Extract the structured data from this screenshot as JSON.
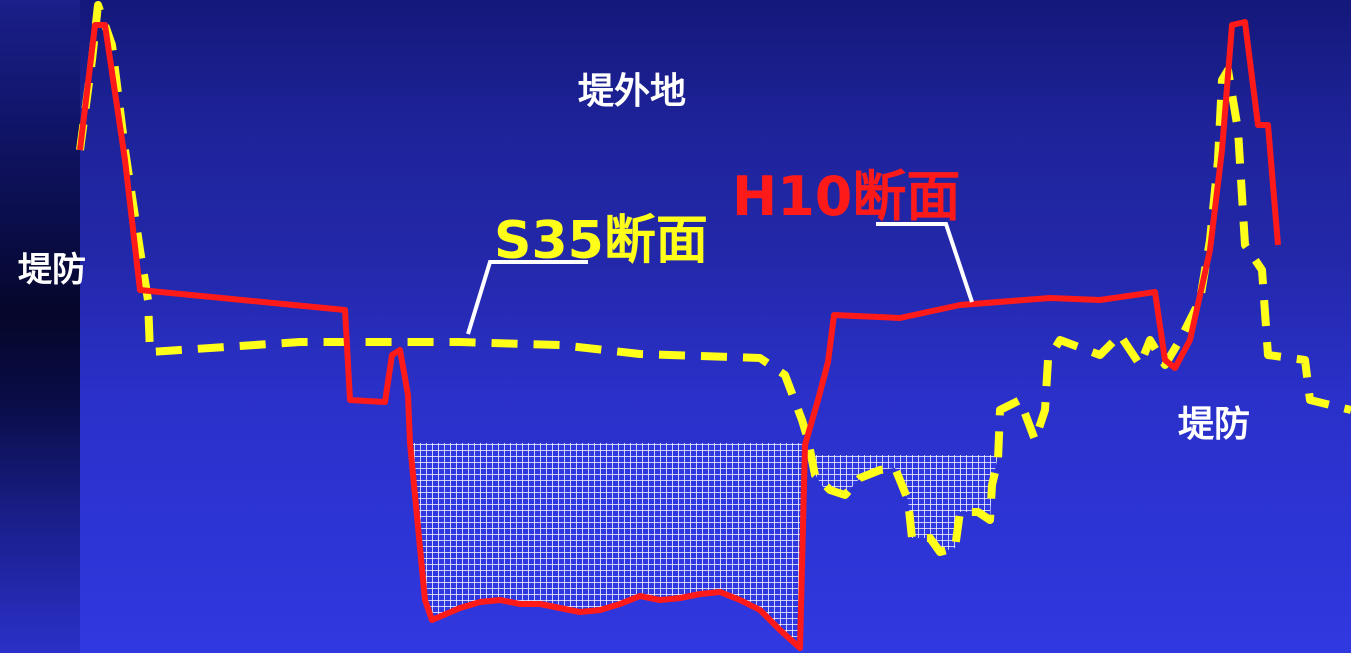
{
  "labels": {
    "outside_area": "堤外地",
    "levee_left": "堤防",
    "levee_right": "堤防",
    "section_s35": "S35断面",
    "section_h10": "H10断面"
  },
  "colors": {
    "s35_line": "#ffff1a",
    "h10_line": "#ff1a1a",
    "leader_line": "#ffffff",
    "hatch": "#ffffff"
  }
}
